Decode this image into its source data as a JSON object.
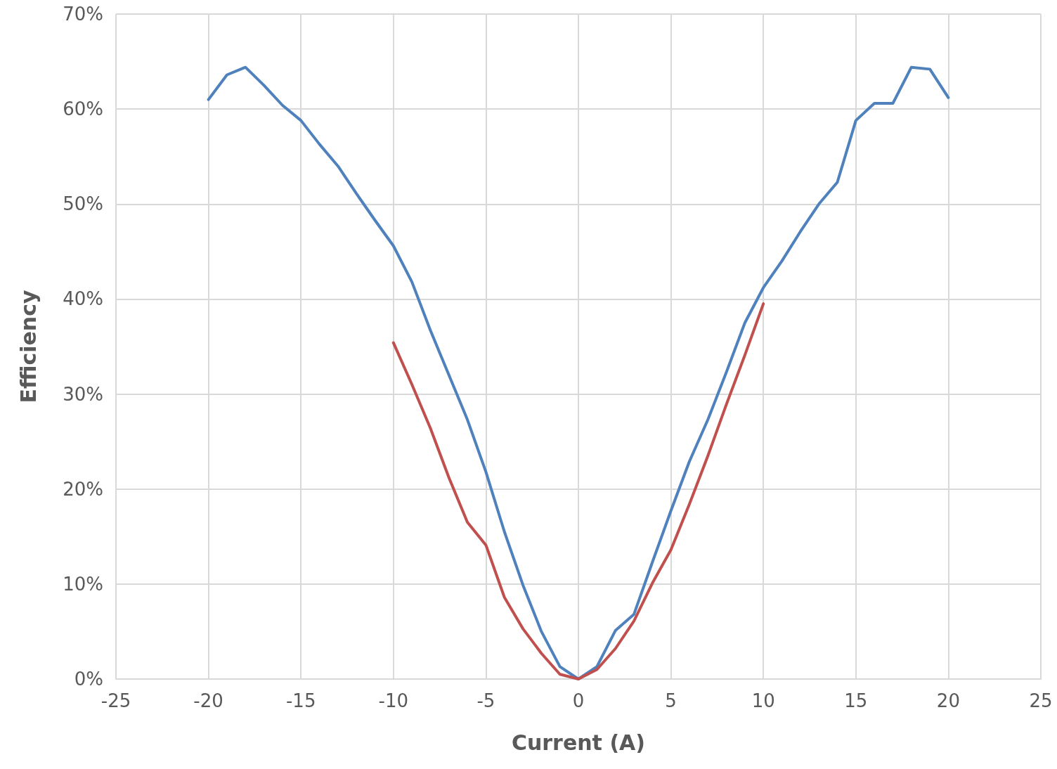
{
  "chart_data": {
    "type": "line",
    "xlabel": "Current (A)",
    "ylabel": "Efficiency",
    "xlim": [
      -25,
      25
    ],
    "xticks": [
      -25,
      -20,
      -15,
      -10,
      -5,
      0,
      5,
      10,
      15,
      20,
      25
    ],
    "ylim": [
      0,
      70
    ],
    "yticks": [
      {
        "value": 0,
        "label": "0%"
      },
      {
        "value": 10,
        "label": "10%"
      },
      {
        "value": 20,
        "label": "20%"
      },
      {
        "value": 30,
        "label": "30%"
      },
      {
        "value": 40,
        "label": "40%"
      },
      {
        "value": 50,
        "label": "50%"
      },
      {
        "value": 60,
        "label": "60%"
      },
      {
        "value": 70,
        "label": "70%"
      }
    ],
    "grid": true,
    "marker": "none",
    "line_style": "solid",
    "series": [
      {
        "color": "#4f81bd",
        "x": [
          -20,
          -19,
          -18,
          -17,
          -16,
          -15,
          -14,
          -13,
          -12,
          -11,
          -10,
          -9,
          -8,
          -7,
          -6,
          -5,
          -4,
          -3,
          -2,
          -1,
          0,
          1,
          2,
          3,
          4,
          5,
          6,
          7,
          8,
          9,
          10,
          11,
          12,
          13,
          14,
          15,
          16,
          17,
          18,
          19,
          20
        ],
        "values": [
          61.0,
          63.6,
          64.4,
          62.5,
          60.4,
          58.8,
          56.3,
          54.0,
          51.1,
          48.3,
          45.6,
          41.8,
          36.7,
          32.0,
          27.3,
          21.8,
          15.5,
          9.9,
          5.0,
          1.3,
          0,
          1.3,
          5.1,
          6.8,
          12.3,
          17.7,
          22.9,
          27.3,
          32.3,
          37.5,
          41.2,
          44.0,
          47.1,
          50.0,
          52.3,
          58.8,
          60.6,
          60.6,
          64.4,
          64.2,
          61.2
        ]
      },
      {
        "color": "#c0504d",
        "x": [
          -10,
          -9,
          -8,
          -7,
          -6,
          -5,
          -4,
          -3,
          -2,
          -1,
          0,
          1,
          2,
          3,
          4,
          5,
          6,
          7,
          8,
          9,
          10
        ],
        "values": [
          35.4,
          31.0,
          26.4,
          21.2,
          16.5,
          14.1,
          8.6,
          5.3,
          2.7,
          0.5,
          0,
          1.0,
          3.2,
          6.1,
          10.1,
          13.6,
          18.4,
          23.5,
          28.9,
          34.1,
          39.5
        ]
      }
    ]
  }
}
